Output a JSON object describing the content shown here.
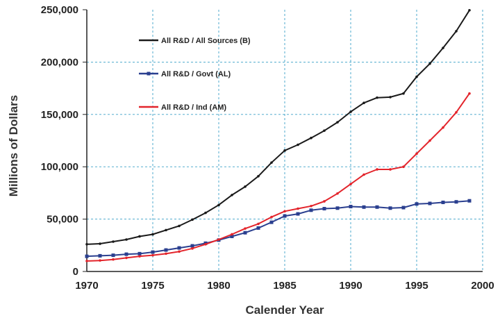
{
  "chart_data": {
    "type": "line",
    "title": "",
    "xlabel": "Calender Year",
    "ylabel": "Millions of Dollars",
    "xlim": [
      1970,
      2000
    ],
    "ylim": [
      0,
      250000
    ],
    "x_ticks": [
      "1970",
      "1975",
      "1980",
      "1985",
      "1990",
      "1995",
      "2000"
    ],
    "y_ticks": [
      "0",
      "50,000",
      "100,000",
      "150,000",
      "200,000",
      "250,000"
    ],
    "grid": true,
    "legend_placement": "top-left",
    "x": [
      1970,
      1971,
      1972,
      1973,
      1974,
      1975,
      1976,
      1977,
      1978,
      1979,
      1980,
      1981,
      1982,
      1983,
      1984,
      1985,
      1986,
      1987,
      1988,
      1989,
      1990,
      1991,
      1992,
      1993,
      1994,
      1995,
      1996,
      1997,
      1998,
      1999
    ],
    "series": [
      {
        "name": "All R&D / All Sources (B)",
        "color": "#1a1a1a",
        "marker": "dot",
        "values": [
          26000,
          26500,
          28500,
          30500,
          33500,
          35500,
          39500,
          43500,
          49500,
          56000,
          63500,
          73000,
          81000,
          91000,
          104000,
          115500,
          121000,
          127500,
          134500,
          142500,
          152500,
          161000,
          166000,
          166500,
          170000,
          186000,
          198500,
          213500,
          229500,
          249500
        ]
      },
      {
        "name": "All R&D / Govt (AL)",
        "color": "#2a3f8f",
        "marker": "square",
        "values": [
          14500,
          15000,
          15500,
          16500,
          17000,
          18500,
          20500,
          22500,
          24500,
          27000,
          30000,
          33500,
          37000,
          41500,
          47000,
          53000,
          55000,
          58500,
          60000,
          60500,
          62000,
          61500,
          61500,
          60500,
          61000,
          64500,
          65000,
          66000,
          66500,
          67500
        ]
      },
      {
        "name": "All R&D / Ind (AM)",
        "color": "#e3242b",
        "marker": "dot",
        "values": [
          10000,
          10500,
          11500,
          13000,
          14500,
          15500,
          17000,
          19000,
          22000,
          26000,
          30500,
          35500,
          41000,
          45500,
          52000,
          57500,
          60000,
          62500,
          67000,
          74500,
          83500,
          92500,
          97500,
          97500,
          100000,
          112500,
          125000,
          137500,
          152000,
          170000
        ]
      }
    ]
  }
}
